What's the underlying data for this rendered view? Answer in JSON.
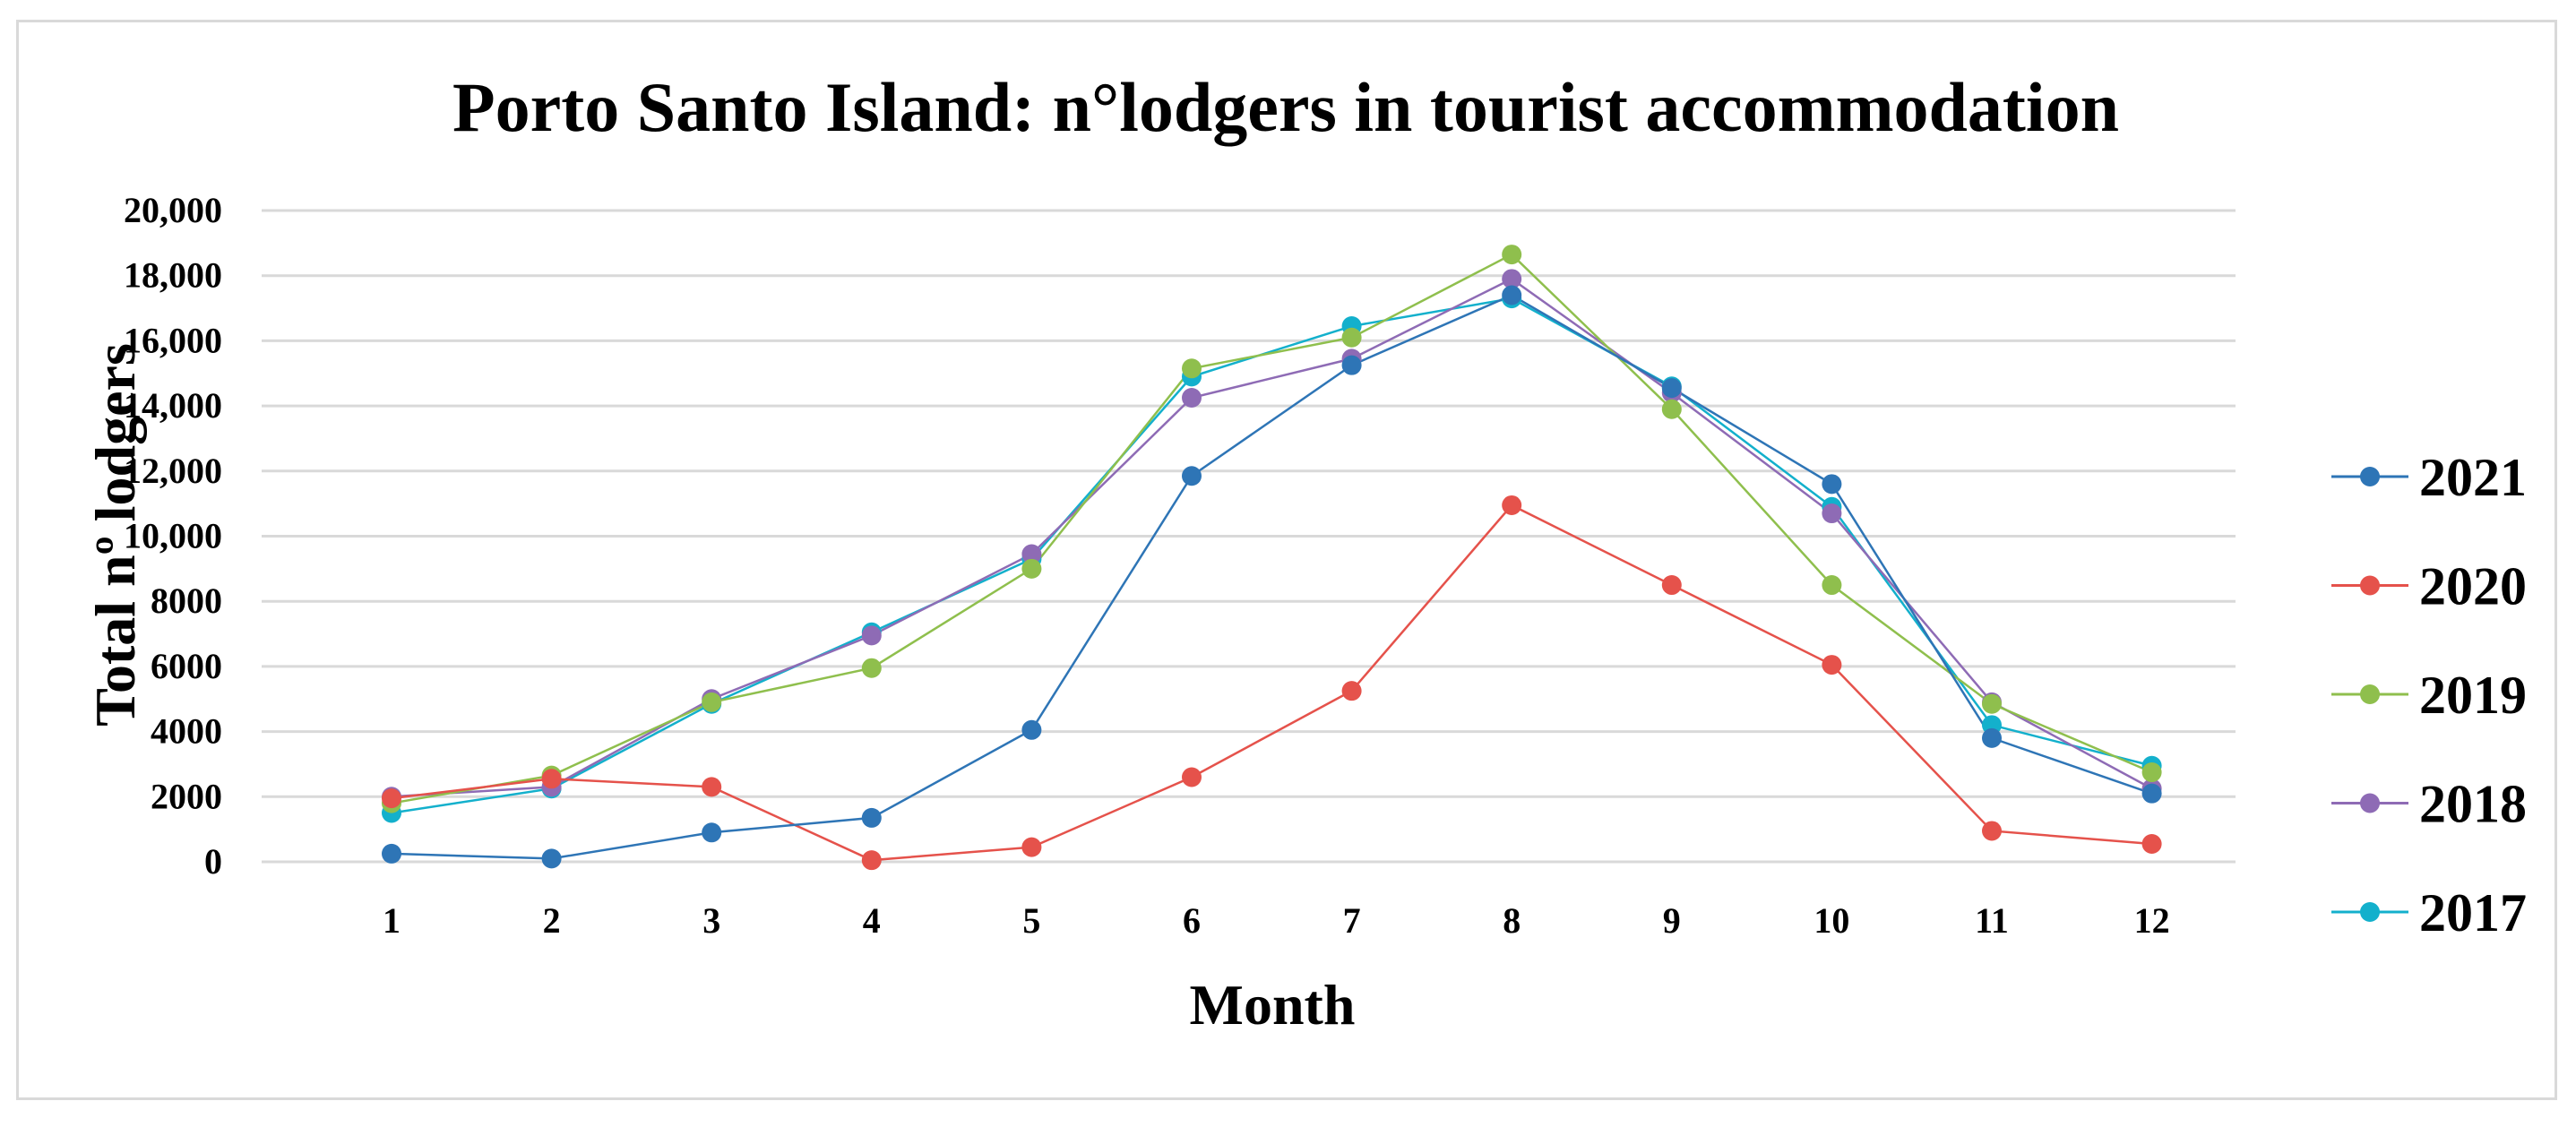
{
  "chart_data": {
    "type": "line",
    "title": "Porto Santo Island: n°lodgers in tourist accommodation",
    "xlabel": "Month",
    "ylabel": "Total nº lodgers",
    "x": [
      1,
      2,
      3,
      4,
      5,
      6,
      7,
      8,
      9,
      10,
      11,
      12
    ],
    "x_tick_labels": [
      "1",
      "2",
      "3",
      "4",
      "5",
      "6",
      "7",
      "8",
      "9",
      "10",
      "11",
      "12"
    ],
    "ylim": [
      0,
      20000
    ],
    "y_ticks": [
      0,
      2000,
      4000,
      6000,
      8000,
      10000,
      12000,
      14000,
      16000,
      18000,
      20000
    ],
    "y_tick_labels": [
      "0",
      "2000",
      "4000",
      "6000",
      "8000",
      "10,000",
      "12,000",
      "14,000",
      "16,000",
      "18,000",
      "20,000"
    ],
    "grid": "horizontal",
    "legend_position": "right",
    "series": [
      {
        "name": "2021",
        "color": "#2e75b6",
        "values": [
          250,
          100,
          900,
          1350,
          4050,
          11850,
          15250,
          17400,
          14550,
          11600,
          3800,
          2100
        ]
      },
      {
        "name": "2020",
        "color": "#e5524b",
        "values": [
          1950,
          2550,
          2300,
          50,
          450,
          2600,
          5250,
          10950,
          8500,
          6050,
          950,
          550
        ]
      },
      {
        "name": "2019",
        "color": "#8fbf4d",
        "values": [
          1800,
          2650,
          4900,
          5950,
          9000,
          15150,
          16100,
          18650,
          13900,
          8500,
          4850,
          2750
        ]
      },
      {
        "name": "2018",
        "color": "#8e6bb5",
        "values": [
          2000,
          2300,
          5000,
          6950,
          9450,
          14250,
          15450,
          17900,
          14400,
          10700,
          4900,
          2250
        ]
      },
      {
        "name": "2017",
        "color": "#13b0cc",
        "values": [
          1500,
          2250,
          4850,
          7050,
          9300,
          14900,
          16450,
          17300,
          14600,
          10900,
          4200,
          2950
        ]
      }
    ]
  }
}
